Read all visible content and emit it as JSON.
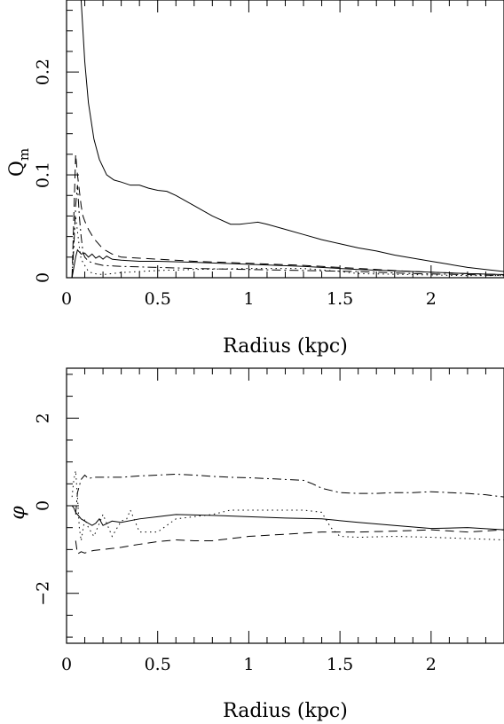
{
  "chart_data": [
    {
      "type": "line",
      "xlabel": "Radius (kpc)",
      "ylabel_main": "Q",
      "ylabel_sub": "m",
      "xlim": [
        0,
        2.4
      ],
      "ylim": [
        0,
        0.27
      ],
      "xticks": [
        0,
        0.5,
        1,
        1.5,
        2
      ],
      "xtick_labels": [
        "0",
        "0.5",
        "1",
        "1.5",
        "2"
      ],
      "xtick_minor": 0.1,
      "yticks": [
        0,
        0.1,
        0.2
      ],
      "ytick_labels": [
        "0",
        "0.1",
        "0.2"
      ],
      "ytick_minor": 0.02,
      "grid": false,
      "series": [
        {
          "style": "solid",
          "x": [
            0.08,
            0.09,
            0.1,
            0.12,
            0.15,
            0.18,
            0.22,
            0.26,
            0.3,
            0.35,
            0.4,
            0.45,
            0.5,
            0.55,
            0.6,
            0.7,
            0.8,
            0.9,
            0.95,
            1.0,
            1.05,
            1.1,
            1.2,
            1.3,
            1.4,
            1.5,
            1.6,
            1.7,
            1.8,
            1.9,
            2.0,
            2.1,
            2.2,
            2.3,
            2.4
          ],
          "y": [
            0.27,
            0.24,
            0.21,
            0.17,
            0.135,
            0.115,
            0.1,
            0.095,
            0.093,
            0.09,
            0.09,
            0.087,
            0.085,
            0.084,
            0.08,
            0.07,
            0.06,
            0.052,
            0.052,
            0.053,
            0.054,
            0.052,
            0.047,
            0.042,
            0.037,
            0.033,
            0.029,
            0.026,
            0.022,
            0.019,
            0.016,
            0.013,
            0.01,
            0.008,
            0.006
          ]
        },
        {
          "style": "dashed",
          "x": [
            0.03,
            0.04,
            0.05,
            0.06,
            0.07,
            0.08,
            0.09,
            0.1,
            0.12,
            0.15,
            0.2,
            0.25,
            0.3,
            0.4,
            0.5,
            0.7,
            1.0,
            1.3,
            1.6,
            1.9,
            2.2,
            2.4
          ],
          "y": [
            0.0,
            0.06,
            0.12,
            0.1,
            0.085,
            0.07,
            0.06,
            0.055,
            0.047,
            0.038,
            0.028,
            0.023,
            0.02,
            0.019,
            0.018,
            0.016,
            0.014,
            0.012,
            0.009,
            0.006,
            0.004,
            0.003
          ]
        },
        {
          "style": "solid",
          "x": [
            0.03,
            0.04,
            0.05,
            0.06,
            0.08,
            0.1,
            0.12,
            0.14,
            0.16,
            0.18,
            0.2,
            0.22,
            0.25,
            0.3,
            0.4,
            0.5,
            0.7,
            1.0,
            1.3,
            1.6,
            1.9,
            2.2,
            2.4
          ],
          "y": [
            0.0,
            0.01,
            0.02,
            0.027,
            0.023,
            0.024,
            0.02,
            0.023,
            0.019,
            0.021,
            0.018,
            0.021,
            0.018,
            0.017,
            0.016,
            0.016,
            0.015,
            0.013,
            0.011,
            0.008,
            0.006,
            0.004,
            0.003
          ]
        },
        {
          "style": "dashdot",
          "x": [
            0.03,
            0.04,
            0.05,
            0.06,
            0.07,
            0.08,
            0.09,
            0.1,
            0.12,
            0.15,
            0.2,
            0.3,
            0.5,
            0.7,
            1.0,
            1.3,
            1.6,
            1.9,
            2.2,
            2.4
          ],
          "y": [
            0.0,
            0.03,
            0.07,
            0.09,
            0.06,
            0.04,
            0.025,
            0.02,
            0.016,
            0.014,
            0.012,
            0.011,
            0.01,
            0.009,
            0.008,
            0.007,
            0.006,
            0.004,
            0.003,
            0.002
          ]
        },
        {
          "style": "dotted",
          "x": [
            0.03,
            0.04,
            0.05,
            0.06,
            0.07,
            0.08,
            0.1,
            0.12,
            0.15,
            0.2,
            0.25,
            0.3,
            0.4,
            0.5,
            0.7,
            1.0,
            1.3,
            1.5,
            1.6,
            1.9,
            2.2,
            2.4
          ],
          "y": [
            0.0,
            0.04,
            0.06,
            0.045,
            0.03,
            0.018,
            0.012,
            0.006,
            0.004,
            0.003,
            0.004,
            0.005,
            0.006,
            0.007,
            0.008,
            0.009,
            0.009,
            0.006,
            0.004,
            0.003,
            0.002,
            0.002
          ]
        }
      ]
    },
    {
      "type": "line",
      "xlabel": "Radius (kpc)",
      "ylabel_main": "φ",
      "xlim": [
        0,
        2.4
      ],
      "ylim": [
        -3.14,
        3.14
      ],
      "xticks": [
        0,
        0.5,
        1,
        1.5,
        2
      ],
      "xtick_labels": [
        "0",
        "0.5",
        "1",
        "1.5",
        "2"
      ],
      "xtick_minor": 0.1,
      "yticks": [
        -2,
        0,
        2
      ],
      "ytick_labels": [
        "−2",
        "0",
        "2"
      ],
      "ytick_minor": 0.5,
      "grid": false,
      "series": [
        {
          "style": "dashdot",
          "x": [
            0.05,
            0.06,
            0.08,
            0.1,
            0.12,
            0.15,
            0.2,
            0.3,
            0.4,
            0.5,
            0.6,
            0.7,
            0.8,
            0.9,
            1.0,
            1.1,
            1.2,
            1.3,
            1.35,
            1.4,
            1.5,
            1.6,
            1.7,
            1.8,
            1.9,
            2.0,
            2.1,
            2.2,
            2.3,
            2.4
          ],
          "y": [
            -0.2,
            0.3,
            0.6,
            0.7,
            0.62,
            0.65,
            0.65,
            0.65,
            0.68,
            0.7,
            0.72,
            0.7,
            0.67,
            0.65,
            0.64,
            0.62,
            0.6,
            0.58,
            0.5,
            0.4,
            0.3,
            0.28,
            0.28,
            0.3,
            0.3,
            0.32,
            0.3,
            0.28,
            0.25,
            0.2
          ]
        },
        {
          "style": "solid",
          "x": [
            0.03,
            0.04,
            0.05,
            0.06,
            0.08,
            0.1,
            0.12,
            0.14,
            0.16,
            0.18,
            0.2,
            0.25,
            0.3,
            0.4,
            0.5,
            0.6,
            0.8,
            1.0,
            1.2,
            1.4,
            1.6,
            1.8,
            2.0,
            2.2,
            2.4
          ],
          "y": [
            0.0,
            -0.05,
            -0.15,
            -0.2,
            -0.3,
            -0.35,
            -0.4,
            -0.45,
            -0.4,
            -0.3,
            -0.45,
            -0.35,
            -0.38,
            -0.3,
            -0.25,
            -0.2,
            -0.22,
            -0.25,
            -0.28,
            -0.3,
            -0.38,
            -0.45,
            -0.52,
            -0.5,
            -0.55
          ]
        },
        {
          "style": "dashed",
          "x": [
            0.05,
            0.06,
            0.08,
            0.1,
            0.12,
            0.15,
            0.2,
            0.3,
            0.4,
            0.5,
            0.6,
            0.7,
            0.8,
            0.9,
            1.0,
            1.2,
            1.4,
            1.6,
            1.8,
            2.0,
            2.2,
            2.4
          ],
          "y": [
            -0.8,
            -1.1,
            -1.05,
            -1.08,
            -1.05,
            -1.02,
            -1.0,
            -0.95,
            -0.88,
            -0.82,
            -0.78,
            -0.8,
            -0.8,
            -0.75,
            -0.7,
            -0.65,
            -0.6,
            -0.6,
            -0.58,
            -0.55,
            -0.6,
            -0.55
          ]
        },
        {
          "style": "dotted",
          "x": [
            0.03,
            0.04,
            0.05,
            0.06,
            0.07,
            0.08,
            0.1,
            0.12,
            0.15,
            0.2,
            0.25,
            0.3,
            0.33,
            0.35,
            0.4,
            0.5,
            0.6,
            0.7,
            0.8,
            0.9,
            1.0,
            1.1,
            1.2,
            1.3,
            1.4,
            1.45,
            1.5,
            1.6,
            1.8,
            2.0,
            2.2,
            2.4
          ],
          "y": [
            0.2,
            0.6,
            0.8,
            0.2,
            -0.5,
            -0.8,
            -0.3,
            -0.5,
            -0.7,
            -0.2,
            -0.7,
            -0.35,
            -0.3,
            -0.1,
            -0.6,
            -0.6,
            -0.3,
            -0.25,
            -0.2,
            -0.1,
            -0.1,
            -0.1,
            -0.1,
            -0.1,
            -0.15,
            -0.5,
            -0.7,
            -0.72,
            -0.7,
            -0.72,
            -0.75,
            -0.78
          ]
        }
      ]
    }
  ]
}
